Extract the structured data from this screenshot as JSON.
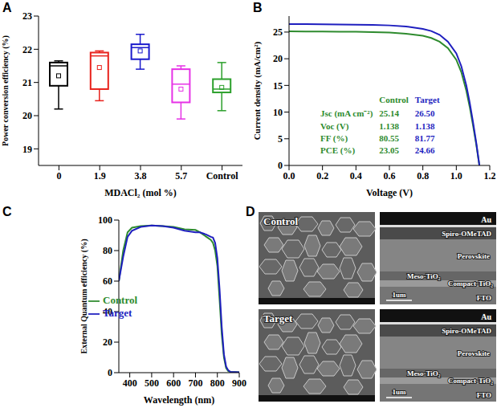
{
  "chart_data": [
    {
      "panel": "A",
      "type": "box",
      "x_label": "MDACl₂ (mol %)",
      "y_label": "Power conversion efficiency (%)",
      "categories": [
        "0",
        "1.9",
        "3.8",
        "5.7",
        "Control"
      ],
      "min": [
        20.2,
        20.45,
        21.4,
        19.9,
        20.15
      ],
      "q1": [
        20.9,
        20.8,
        21.7,
        20.4,
        20.7
      ],
      "median": [
        21.5,
        21.8,
        22.05,
        20.95,
        20.8
      ],
      "q3": [
        21.6,
        21.9,
        22.15,
        21.4,
        21.1
      ],
      "max": [
        21.65,
        21.95,
        22.45,
        21.5,
        21.6
      ],
      "mean": [
        21.2,
        21.45,
        21.95,
        20.8,
        20.85
      ],
      "colors": [
        "#000000",
        "#e8211b",
        "#1a1acc",
        "#e632e6",
        "#2ca02c"
      ],
      "ylim": [
        18.5,
        23
      ],
      "yticks": [
        19,
        20,
        21,
        22,
        23
      ]
    },
    {
      "panel": "B",
      "type": "line",
      "x_label": "Voltage (V)",
      "y_label": "Current density (mA/cm²)",
      "xlim": [
        0,
        1.2
      ],
      "xticks": [
        {
          "value": 0,
          "label": "0.0"
        },
        0.2,
        0.4,
        0.6,
        0.8,
        {
          "value": 1,
          "label": "1.0"
        },
        1.2
      ],
      "ylim": [
        0,
        28
      ],
      "yticks": [
        0,
        5,
        10,
        15,
        20,
        25
      ],
      "table_rows": [
        "Jsc (mA cm⁻²)",
        "Voc (V)",
        "FF (%)",
        "PCE (%)"
      ],
      "series": [
        {
          "name": "Control",
          "color": "#2e8b2e",
          "x": [
            0,
            0.1,
            0.2,
            0.3,
            0.4,
            0.5,
            0.6,
            0.7,
            0.8,
            0.85,
            0.9,
            0.95,
            1.0,
            1.03,
            1.06,
            1.08,
            1.1,
            1.12,
            1.138
          ],
          "values": [
            25.14,
            25.12,
            25.1,
            25.08,
            25.05,
            25.0,
            24.9,
            24.7,
            24.3,
            23.9,
            23.2,
            22.0,
            19.8,
            17.5,
            14.0,
            11.0,
            7.5,
            3.8,
            0
          ],
          "table": [
            "25.14",
            "1.138",
            "80.55",
            "23.05"
          ]
        },
        {
          "name": "Target",
          "color": "#1f1fbf",
          "x": [
            0,
            0.1,
            0.2,
            0.3,
            0.4,
            0.5,
            0.6,
            0.7,
            0.8,
            0.85,
            0.9,
            0.95,
            1.0,
            1.03,
            1.06,
            1.08,
            1.1,
            1.12,
            1.138
          ],
          "values": [
            26.5,
            26.48,
            26.46,
            26.43,
            26.4,
            26.35,
            26.25,
            26.05,
            25.6,
            25.2,
            24.5,
            23.2,
            21.0,
            18.6,
            15.0,
            11.8,
            8.1,
            4.1,
            0
          ],
          "table": [
            "26.50",
            "1.138",
            "81.77",
            "24.66"
          ]
        }
      ]
    },
    {
      "panel": "C",
      "type": "line",
      "x_label": "Wavelength (nm)",
      "y_label": "External Quantum efficiency (%)",
      "xlim": [
        350,
        900
      ],
      "xticks": [
        400,
        500,
        600,
        700,
        800,
        900
      ],
      "ylim": [
        0,
        100
      ],
      "yticks": [
        0,
        20,
        40,
        60,
        80,
        100
      ],
      "legend": "center",
      "series": [
        {
          "name": "Control",
          "color": "#2e8b2e",
          "x": [
            350,
            370,
            390,
            410,
            450,
            500,
            550,
            600,
            650,
            700,
            720,
            750,
            770,
            780,
            790,
            800,
            810,
            820,
            830,
            840,
            850,
            860,
            900
          ],
          "values": [
            60,
            80,
            92,
            95,
            96,
            96.5,
            96,
            95.5,
            94,
            93.5,
            92,
            89,
            87,
            85,
            80,
            70,
            48,
            25,
            10,
            3,
            1,
            0.5,
            0.3
          ]
        },
        {
          "name": "Target",
          "color": "#1f1fbf",
          "x": [
            350,
            370,
            390,
            410,
            450,
            500,
            550,
            600,
            650,
            700,
            720,
            750,
            770,
            780,
            790,
            800,
            810,
            820,
            830,
            840,
            850,
            860,
            900
          ],
          "values": [
            60,
            76,
            89,
            93,
            95.5,
            96.5,
            96,
            95,
            93,
            92,
            92,
            90.5,
            89,
            88.5,
            85,
            75,
            55,
            30,
            12,
            4,
            1.5,
            0.5,
            0.3
          ]
        }
      ]
    }
  ],
  "images": {
    "panel": "D",
    "rows": [
      {
        "label": "Control",
        "layers": [
          "Au",
          "Spiro-OMeTAD",
          "Perovskite",
          "Meso-TiO₂",
          "Compact-TiO₂",
          "FTO"
        ],
        "scale_bar": "1um"
      },
      {
        "label": "Target",
        "layers": [
          "Au",
          "Spiro-OMeTAD",
          "Perovskite",
          "Meso-TiO₂",
          "Compact-TiO₂",
          "FTO"
        ],
        "scale_bar": "1um"
      }
    ]
  }
}
